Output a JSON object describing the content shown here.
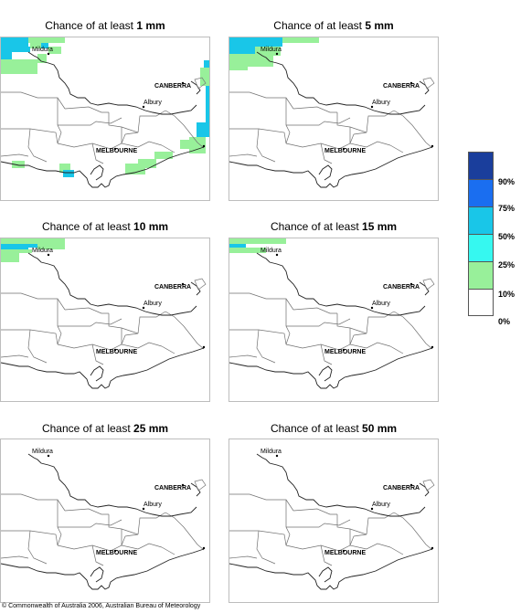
{
  "panels": [
    {
      "prefix": "Chance of at least ",
      "amount": "1 mm",
      "coverage": "1"
    },
    {
      "prefix": "Chance of at least ",
      "amount": "5 mm",
      "coverage": "5"
    },
    {
      "prefix": "Chance of at least ",
      "amount": "10 mm",
      "coverage": "10"
    },
    {
      "prefix": "Chance of at least ",
      "amount": "15 mm",
      "coverage": "15"
    },
    {
      "prefix": "Chance of at least ",
      "amount": "25 mm",
      "coverage": "25"
    },
    {
      "prefix": "Chance of at least ",
      "amount": "50 mm",
      "coverage": "50"
    }
  ],
  "cities": {
    "mildura": "Mildura",
    "canberra": "CANBERRA",
    "albury": "Albury",
    "melbourne": "MELBOURNE"
  },
  "legend": {
    "labels": [
      "90%",
      "75%",
      "50%",
      "25%",
      "10%",
      "0%"
    ],
    "colors": [
      "#1a3e9c",
      "#1a6ef0",
      "#19c6e8",
      "#36f8f0",
      "#98f09a",
      "#ffffff"
    ]
  },
  "copyright": "© Commonwealth of Australia 2006, Australian Bureau of Meteorology"
}
